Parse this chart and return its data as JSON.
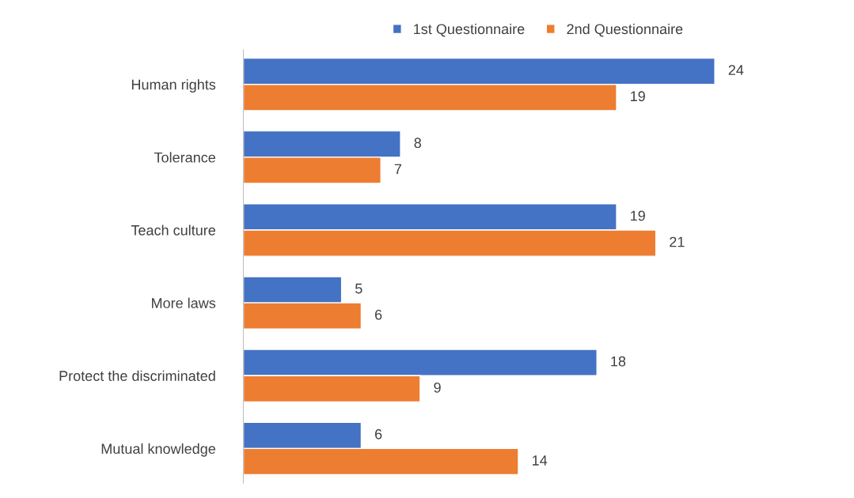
{
  "chart_data": {
    "type": "bar",
    "orientation": "horizontal",
    "categories": [
      "Human rights",
      "Tolerance",
      "Teach culture",
      "More laws",
      "Protect the discriminated",
      "Mutual knowledge"
    ],
    "series": [
      {
        "name": "1st Questionnaire",
        "color": "#4472c4",
        "values": [
          24,
          8,
          19,
          5,
          18,
          6
        ]
      },
      {
        "name": "2nd Questionnaire",
        "color": "#ed7d31",
        "values": [
          19,
          7,
          21,
          6,
          9,
          14
        ]
      }
    ],
    "data_labels": true,
    "legend": "top",
    "grid": false,
    "tick_labels": "y"
  }
}
